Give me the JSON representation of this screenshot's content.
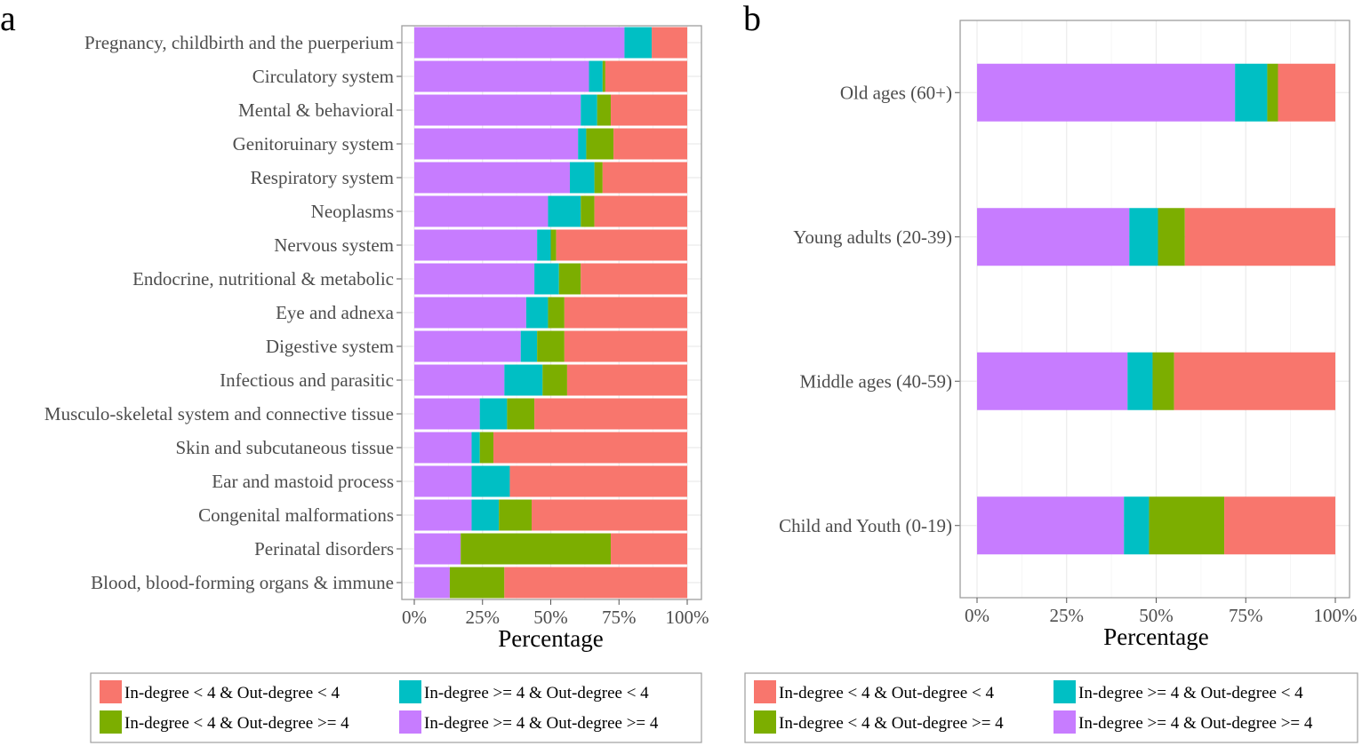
{
  "colors": {
    "low_low": "#F8766D",
    "low_high": "#7CAE00",
    "high_low": "#00BFC4",
    "high_high": "#C77CFF",
    "panel_border": "#9e9e9e",
    "grid": "#ebebeb"
  },
  "chart_data": [
    {
      "panel": "a",
      "type": "bar",
      "orientation": "horizontal",
      "stacked": true,
      "xlabel": "Percentage",
      "ylabel": "",
      "xlim": [
        0,
        100
      ],
      "x_ticks": [
        "0%",
        "25%",
        "50%",
        "75%",
        "100%"
      ],
      "grid": true,
      "categories": [
        "Pregnancy, childbirth and the puerperium",
        "Circulatory system",
        "Mental & behavioral",
        "Genitoruinary system",
        "Respiratory system",
        "Neoplasms",
        "Nervous system",
        "Endocrine, nutritional & metabolic",
        "Eye and adnexa",
        "Digestive system",
        "Infectious and parasitic",
        "Musculo-skeletal system and connective tissue",
        "Skin and subcutaneous tissue",
        "Ear and mastoid process",
        "Congenital malformations",
        "Perinatal disorders",
        "Blood, blood-forming organs & immune"
      ],
      "series": [
        {
          "name": "In-degree >= 4 & Out-degree >= 4",
          "color_key": "high_high",
          "values": [
            77,
            64,
            61,
            60,
            57,
            49,
            45,
            44,
            41,
            39,
            33,
            24,
            21,
            21,
            21,
            17,
            13
          ]
        },
        {
          "name": "In-degree >= 4 & Out-degree < 4",
          "color_key": "high_low",
          "values": [
            10,
            5,
            6,
            3,
            9,
            12,
            5,
            9,
            8,
            6,
            14,
            10,
            3,
            14,
            10,
            0,
            0
          ]
        },
        {
          "name": "In-degree < 4 & Out-degree >= 4",
          "color_key": "low_high",
          "values": [
            0,
            1,
            5,
            10,
            3,
            5,
            2,
            8,
            6,
            10,
            9,
            10,
            5,
            0,
            12,
            55,
            20
          ]
        },
        {
          "name": "In-degree < 4 & Out-degree < 4",
          "color_key": "low_low",
          "values": [
            13,
            30,
            28,
            27,
            31,
            34,
            48,
            39,
            45,
            45,
            44,
            56,
            71,
            65,
            57,
            28,
            67
          ]
        }
      ],
      "legend": {
        "placement": "bottom",
        "entries": [
          {
            "label": "In-degree < 4 & Out-degree < 4",
            "color_key": "low_low"
          },
          {
            "label": "In-degree >= 4 & Out-degree < 4",
            "color_key": "high_low"
          },
          {
            "label": "In-degree < 4 & Out-degree >= 4",
            "color_key": "low_high"
          },
          {
            "label": "In-degree >= 4 & Out-degree >= 4",
            "color_key": "high_high"
          }
        ]
      }
    },
    {
      "panel": "b",
      "type": "bar",
      "orientation": "horizontal",
      "stacked": true,
      "xlabel": "Percentage",
      "ylabel": "",
      "xlim": [
        0,
        100
      ],
      "x_ticks": [
        "0%",
        "25%",
        "50%",
        "75%",
        "100%"
      ],
      "grid": true,
      "categories": [
        "Old ages (60+)",
        "Young adults (20-39)",
        "Middle ages (40-59)",
        "Child and Youth (0-19)"
      ],
      "series": [
        {
          "name": "In-degree >= 4 & Out-degree >= 4",
          "color_key": "high_high",
          "values": [
            72,
            42.5,
            42,
            41
          ]
        },
        {
          "name": "In-degree >= 4 & Out-degree < 4",
          "color_key": "high_low",
          "values": [
            9,
            8,
            7,
            7
          ]
        },
        {
          "name": "In-degree < 4 & Out-degree >= 4",
          "color_key": "low_high",
          "values": [
            3,
            7.5,
            6,
            21
          ]
        },
        {
          "name": "In-degree < 4 & Out-degree < 4",
          "color_key": "low_low",
          "values": [
            16,
            42,
            45,
            31
          ]
        }
      ],
      "legend": {
        "placement": "bottom",
        "entries": [
          {
            "label": "In-degree < 4 & Out-degree < 4",
            "color_key": "low_low"
          },
          {
            "label": "In-degree >= 4 & Out-degree < 4",
            "color_key": "high_low"
          },
          {
            "label": "In-degree < 4 & Out-degree >= 4",
            "color_key": "low_high"
          },
          {
            "label": "In-degree >= 4 & Out-degree >= 4",
            "color_key": "high_high"
          }
        ]
      }
    }
  ]
}
